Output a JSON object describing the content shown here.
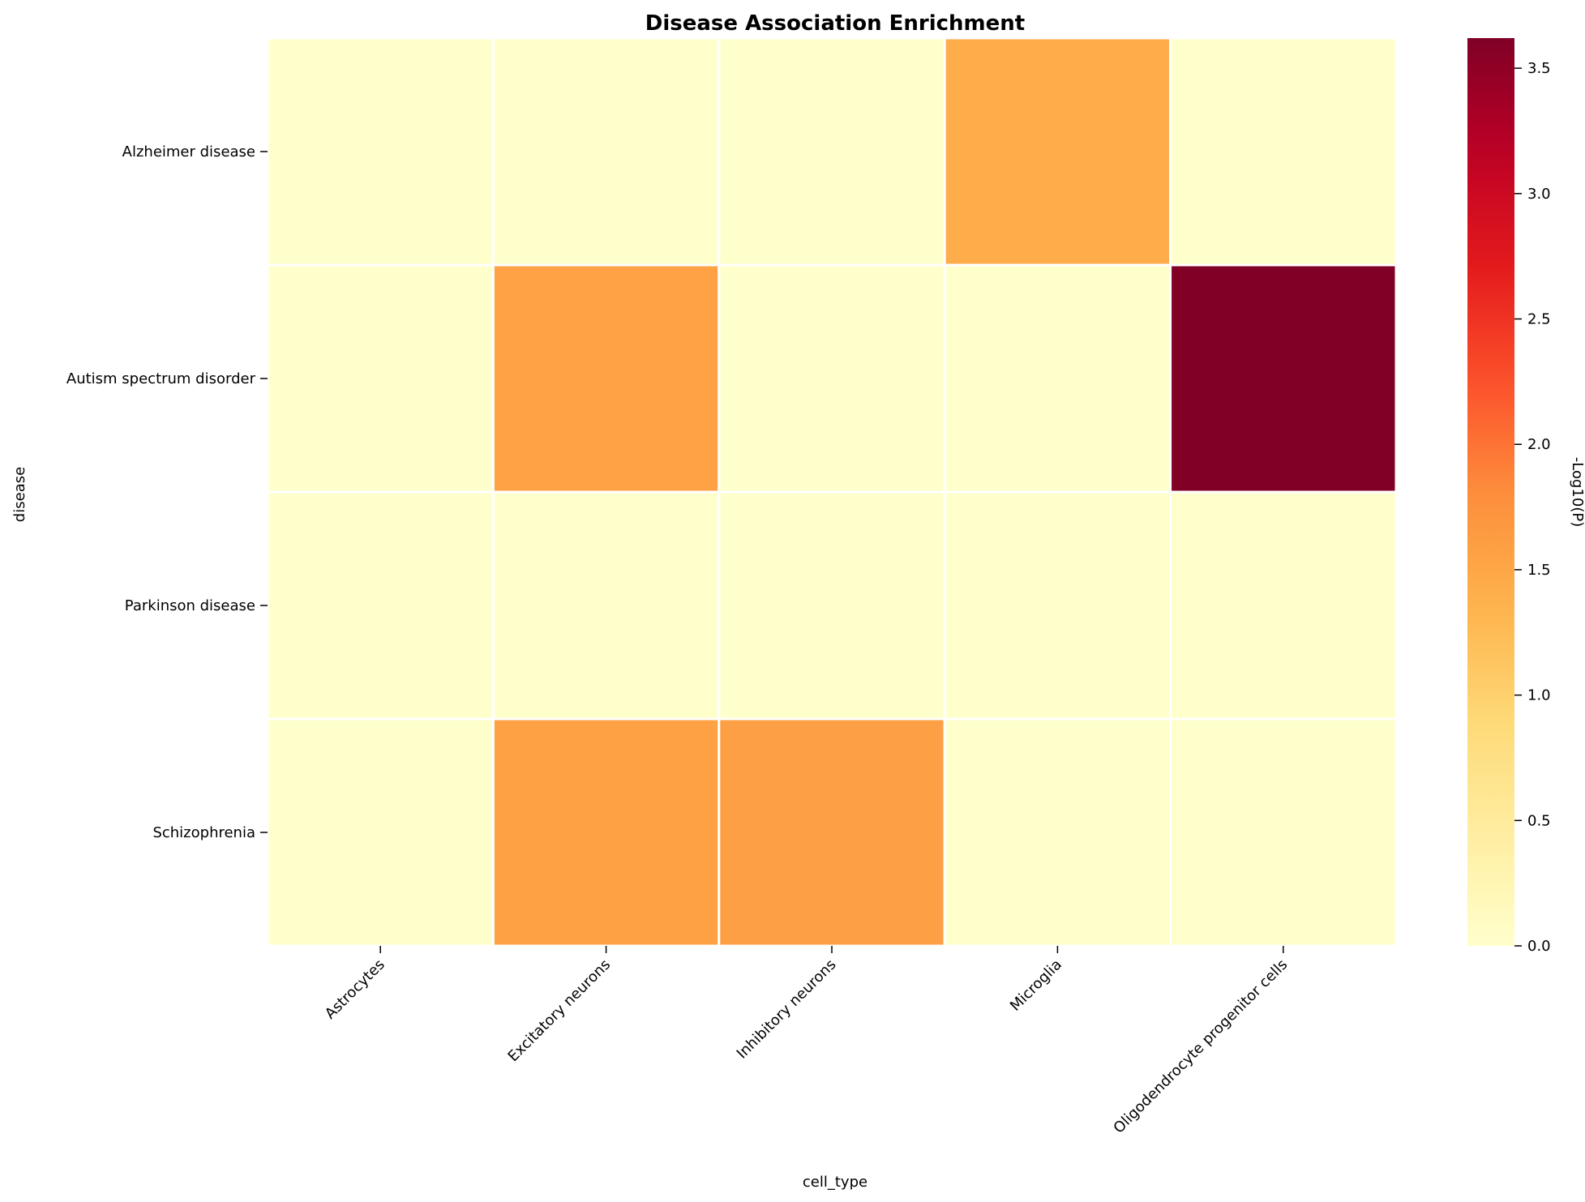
{
  "chart_data": {
    "type": "heatmap",
    "title": "Disease Association Enrichment",
    "xlabel": "cell_type",
    "ylabel": "disease",
    "x_categories": [
      "Astrocytes",
      "Excitatory neurons",
      "Inhibitory neurons",
      "Microglia",
      "Oligodendrocyte progenitor cells"
    ],
    "y_categories": [
      "Alzheimer disease",
      "Autism spectrum disorder",
      "Parkinson disease",
      "Schizophrenia"
    ],
    "values": [
      [
        0.0,
        0.0,
        0.0,
        1.42,
        0.0
      ],
      [
        0.0,
        1.55,
        0.0,
        0.0,
        3.62
      ],
      [
        0.0,
        0.0,
        0.0,
        0.0,
        0.0
      ],
      [
        0.0,
        1.57,
        1.59,
        0.0,
        0.0
      ]
    ],
    "colorbar": {
      "label": "-Log10(P)",
      "range": [
        0,
        3.62
      ],
      "ticks": [
        0.0,
        0.5,
        1.0,
        1.5,
        2.0,
        2.5,
        3.0,
        3.5
      ],
      "tick_labels": [
        "0.0",
        "0.5",
        "1.0",
        "1.5",
        "2.0",
        "2.5",
        "3.0",
        "3.5"
      ],
      "colormap": "YlOrRd"
    },
    "grid": false
  }
}
